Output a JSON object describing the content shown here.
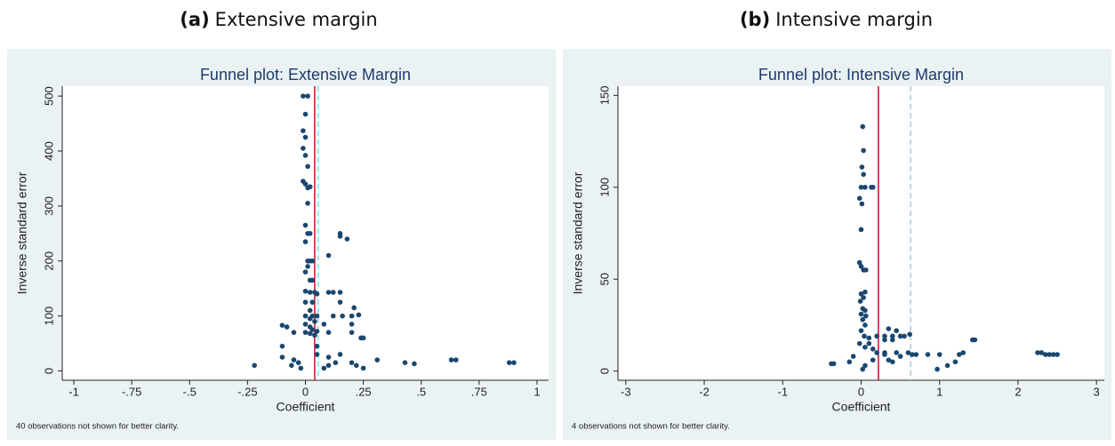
{
  "chart_data": [
    {
      "type": "scatter",
      "caption_label": "(a)",
      "caption": "Extensive margin",
      "title": "Funnel plot: Extensive Margin",
      "x_label": "Coefficient",
      "y_label": "Inverse standard error",
      "note": "40 observations not shown for better clarity.",
      "xlim": [
        -1.05,
        1.05
      ],
      "ylim": [
        -17,
        518
      ],
      "xticks": [
        -1,
        {
          "value": -0.75,
          "label": "-.75"
        },
        {
          "value": -0.5,
          "label": "-.5"
        },
        {
          "value": -0.25,
          "label": "-.25"
        },
        0,
        {
          "value": 0.25,
          "label": ".25"
        },
        {
          "value": 0.5,
          "label": ".5"
        },
        {
          "value": 0.75,
          "label": ".75"
        },
        1
      ],
      "yticks": [
        0,
        100,
        200,
        300,
        400,
        500
      ],
      "reference_lines": [
        {
          "value": 0.04,
          "color": "#c8102e",
          "style": "solid"
        },
        {
          "value": 0.055,
          "color": "#a6cce0",
          "style": "dashed"
        }
      ],
      "series": [
        {
          "color": "#1a476f",
          "x": [
            -0.01,
            0.01,
            0.0,
            -0.01,
            0.0,
            -0.01,
            0.0,
            0.01,
            -0.01,
            0.0,
            0.02,
            0.01,
            0.01,
            0.0,
            0.01,
            0.02,
            0.0,
            0.01,
            0.02,
            0.03,
            0.01,
            0.0,
            0.02,
            0.03,
            0.0,
            0.02,
            0.04,
            0.05,
            0.0,
            0.03,
            0.02,
            0.0,
            0.03,
            0.05,
            0.02,
            0.04,
            0.0,
            0.02,
            0.03,
            0.05,
            0.0,
            0.02,
            0.04,
            0.15,
            0.15,
            0.18,
            0.1,
            0.21,
            0.23,
            0.24,
            0.25,
            0.1,
            0.12,
            0.15,
            0.15,
            0.12,
            0.16,
            0.2,
            0.08,
            0.2,
            0.1,
            0.2,
            -0.1,
            -0.08,
            -0.05,
            -0.22,
            -0.1,
            -0.05,
            -0.03,
            0.05,
            0.1,
            0.15,
            0.2,
            0.22,
            0.25,
            0.31,
            0.43,
            0.47,
            0.63,
            0.65,
            0.88,
            0.9,
            -0.1,
            0.05,
            0.1,
            0.13,
            -0.02,
            0.08,
            -0.06
          ],
          "values": [
            500,
            500,
            467,
            437,
            425,
            405,
            392,
            372,
            345,
            340,
            335,
            333,
            305,
            265,
            250,
            250,
            235,
            200,
            200,
            200,
            190,
            180,
            165,
            165,
            145,
            143,
            143,
            140,
            125,
            125,
            110,
            100,
            100,
            100,
            95,
            90,
            85,
            80,
            75,
            72,
            70,
            68,
            65,
            250,
            245,
            240,
            210,
            115,
            102,
            60,
            60,
            143,
            143,
            143,
            125,
            100,
            100,
            100,
            85,
            85,
            70,
            70,
            83,
            80,
            70,
            10,
            25,
            20,
            15,
            30,
            25,
            30,
            15,
            10,
            5,
            20,
            15,
            13,
            20,
            20,
            15,
            15,
            45,
            45,
            10,
            15,
            5,
            5,
            10
          ]
        }
      ]
    },
    {
      "type": "scatter",
      "caption_label": "(b)",
      "caption": "Intensive margin",
      "title": "Funnel plot: Intensive Margin",
      "x_label": "Coefficient",
      "y_label": "Inverse standard error",
      "note": "4 observations not shown for better clarity.",
      "xlim": [
        -3.1,
        3.1
      ],
      "ylim": [
        -5,
        155
      ],
      "xticks": [
        -3,
        -2,
        -1,
        0,
        1,
        2,
        3
      ],
      "yticks": [
        0,
        50,
        100,
        150
      ],
      "reference_lines": [
        {
          "value": 0.22,
          "color": "#c8102e",
          "style": "solid"
        },
        {
          "value": 0.63,
          "color": "#a6cce0",
          "style": "dashed"
        }
      ],
      "series": [
        {
          "color": "#1a476f",
          "x": [
            0.02,
            0.03,
            0.01,
            0.03,
            0.0,
            0.05,
            0.13,
            0.15,
            -0.02,
            0.01,
            0.0,
            -0.02,
            0.0,
            0.03,
            0.06,
            0.05,
            0.0,
            0.03,
            -0.01,
            0.02,
            0.05,
            0.0,
            0.06,
            0.02,
            0.05,
            0.0,
            0.04,
            0.1,
            0.2,
            0.3,
            0.4,
            0.5,
            0.55,
            0.3,
            0.4,
            0.35,
            0.45,
            0.1,
            -0.02,
            0.05,
            0.15,
            0.2,
            0.3,
            0.45,
            0.5,
            0.35,
            0.4,
            0.15,
            -0.1,
            -0.15,
            -0.35,
            -0.38,
            0.05,
            0.02,
            0.3,
            0.6,
            0.65,
            0.7,
            0.85,
            0.62,
            0.97,
            1.0,
            1.1,
            1.2,
            1.25,
            1.3,
            1.42,
            1.45,
            2.25,
            2.3,
            2.35,
            2.4,
            2.45,
            2.5
          ],
          "values": [
            133,
            120,
            111,
            107,
            100,
            100,
            100,
            100,
            94,
            91,
            77,
            59,
            57,
            55,
            55,
            43,
            42,
            40,
            38,
            34,
            33,
            31,
            30,
            28,
            25,
            22,
            19,
            18,
            19,
            19,
            19,
            19,
            19,
            17,
            17,
            23,
            22,
            15,
            15,
            13,
            12,
            10,
            10,
            10,
            8,
            6,
            5,
            6,
            8,
            5,
            4,
            4,
            3,
            1,
            9,
            10,
            9,
            9,
            9,
            20,
            1,
            9,
            3,
            5,
            9,
            10,
            17,
            17,
            10,
            10,
            9,
            9,
            9,
            9
          ]
        }
      ]
    }
  ]
}
